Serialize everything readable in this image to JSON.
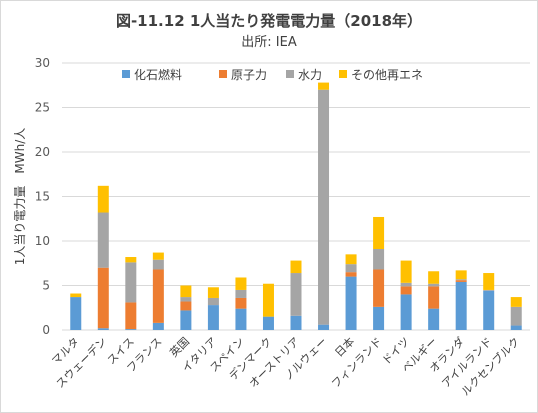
{
  "chart_data": {
    "type": "bar",
    "stacked": true,
    "title": "図-11.12  1人当たり発電電力量（2018年）",
    "subtitle": "出所: IEA",
    "ylabel": "1人当り電力量　MWh/人",
    "xlabel": "",
    "ylim": [
      0,
      30
    ],
    "yticks": [
      0,
      5,
      10,
      15,
      20,
      25,
      30
    ],
    "grid": true,
    "legend": "top",
    "categories": [
      "マルタ",
      "スウェーデン",
      "スイス",
      "フランス",
      "英国",
      "イタリア",
      "スペイン",
      "デンマーク",
      "オーストリア",
      "ノルウェー",
      "日本",
      "フィンランド",
      "ドイツ",
      "ベルギー",
      "オランダ",
      "アイルランド",
      "ルクセンブルク"
    ],
    "series": [
      {
        "name": "化石燃料",
        "color": "#5b9bd5",
        "values": [
          3.7,
          0.2,
          0.1,
          0.8,
          2.2,
          2.8,
          2.4,
          1.5,
          1.6,
          0.6,
          6.0,
          2.6,
          4.0,
          2.4,
          5.4,
          4.4,
          0.5
        ]
      },
      {
        "name": "原子力",
        "color": "#ed7d31",
        "values": [
          0,
          6.8,
          3.0,
          6.0,
          1.0,
          0,
          1.2,
          0,
          0,
          0,
          0.5,
          4.2,
          0.9,
          2.5,
          0.2,
          0,
          0
        ]
      },
      {
        "name": "水力",
        "color": "#a5a5a5",
        "values": [
          0,
          6.2,
          4.5,
          1.1,
          0.5,
          0.8,
          0.9,
          0,
          4.8,
          26.4,
          0.9,
          2.3,
          0.4,
          0.3,
          0.1,
          0.1,
          2.1
        ]
      },
      {
        "name": "その他再エネ",
        "color": "#ffc000",
        "values": [
          0.4,
          3.0,
          0.6,
          0.8,
          1.3,
          1.2,
          1.4,
          3.7,
          1.4,
          0.8,
          1.1,
          3.6,
          2.5,
          1.4,
          1.0,
          1.9,
          1.1
        ]
      }
    ]
  }
}
